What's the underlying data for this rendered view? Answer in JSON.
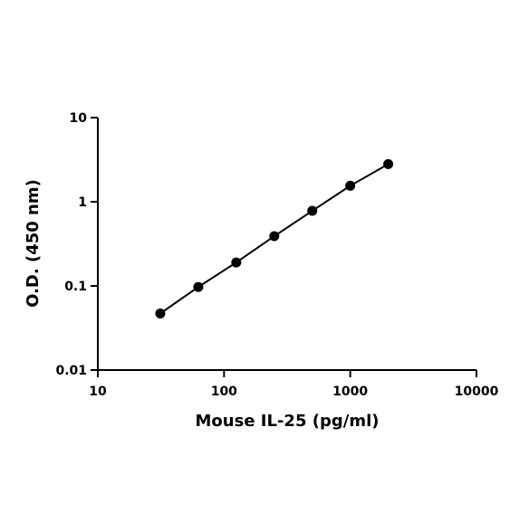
{
  "chart_data": {
    "type": "scatter",
    "x_label": "Mouse IL-25 (pg/ml)",
    "y_label": "O.D. (450 nm)",
    "x": [
      31.25,
      62.5,
      125,
      250,
      500,
      1000,
      2000
    ],
    "values": [
      0.047,
      0.097,
      0.19,
      0.39,
      0.78,
      1.55,
      2.8
    ],
    "color": "#000000",
    "connect": true,
    "xscale": "log",
    "yscale": "log",
    "xlim": [
      10,
      10000
    ],
    "xticks": [
      10,
      100,
      1000,
      10000
    ],
    "ylim": [
      0.01,
      10
    ],
    "yticks": [
      0.01,
      0.1,
      1,
      10
    ]
  }
}
